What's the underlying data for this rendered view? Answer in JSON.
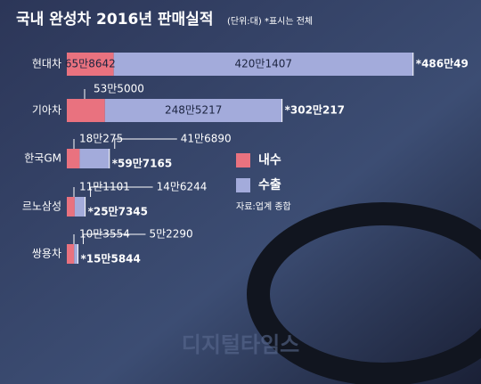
{
  "chart_data": {
    "type": "stacked-bar-horizontal",
    "title": "국내 완성차 2016년 판매실적",
    "subtitle": "(단위:대) *표시는 전체",
    "source": "자료:업계 종합",
    "watermark": "디지털타임스",
    "categories": [
      "현대차",
      "기아차",
      "한국GM",
      "르노삼성",
      "쌍용차"
    ],
    "series": [
      {
        "name": "내수",
        "color": "#e9727f",
        "values": [
          658642,
          535000,
          180275,
          111101,
          103554
        ],
        "value_labels": [
          "65만8642",
          "53만5000",
          "18만275",
          "11만1101",
          "10만3554"
        ]
      },
      {
        "name": "수출",
        "color": "#a3abdb",
        "values": [
          4201407,
          2485217,
          416890,
          146244,
          52290
        ],
        "value_labels": [
          "420만1407",
          "248만5217",
          "41만6890",
          "14만6244",
          "5만2290"
        ]
      }
    ],
    "totals": [
      4860049,
      3020217,
      597165,
      257345,
      155844
    ],
    "total_labels": [
      "*486만49",
      "*302만217",
      "*59만7165",
      "*25만7345",
      "*15만5844"
    ],
    "xlim": [
      0,
      5000000
    ]
  }
}
